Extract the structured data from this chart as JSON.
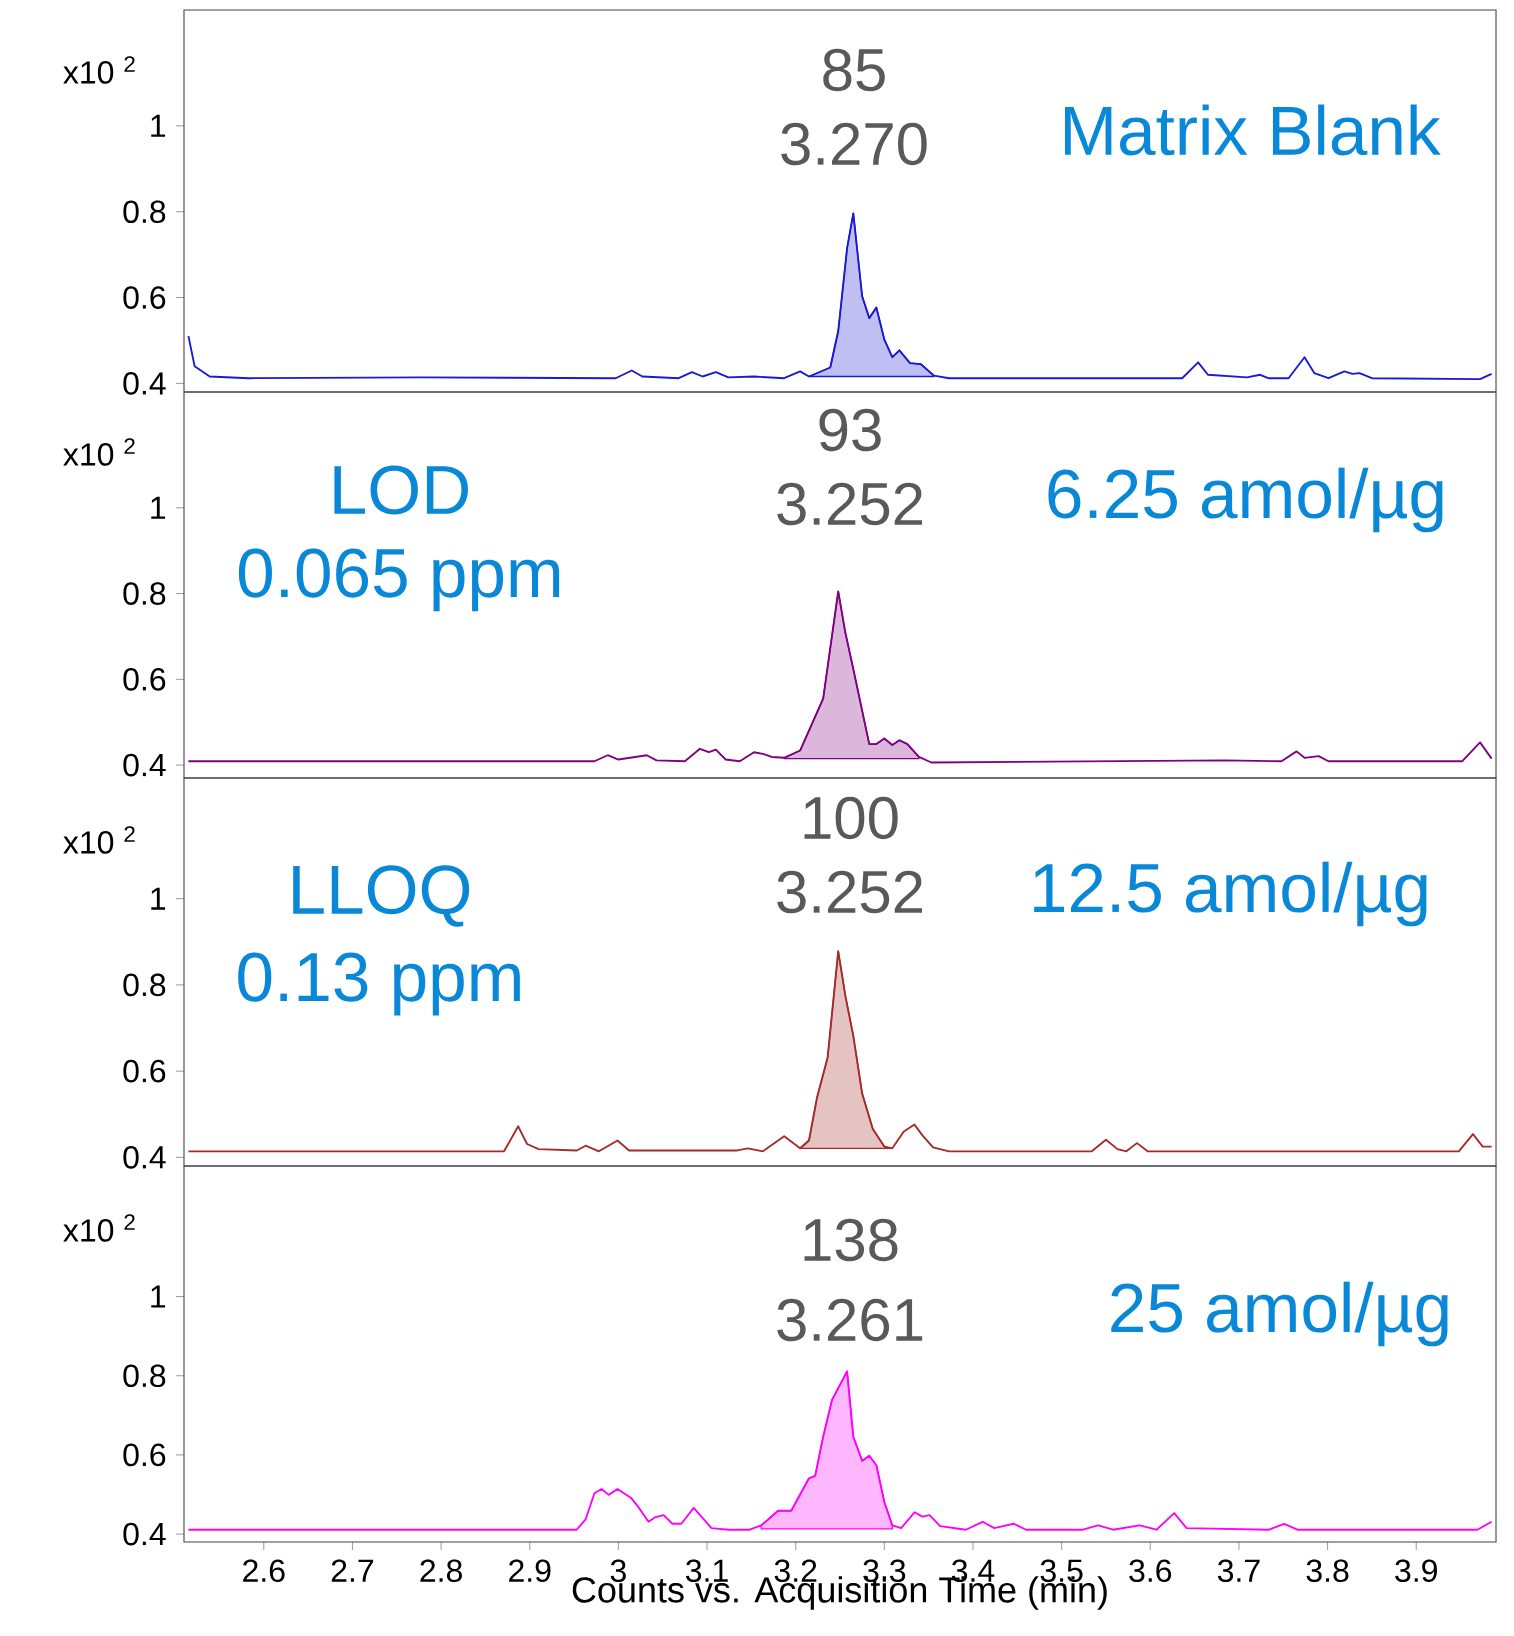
{
  "chart_data": [
    {
      "type": "line",
      "annotations": [
        "x10 $^{2}$",
        "85",
        "3.270",
        "Matrix Blank"
      ],
      "xlim": [
        2.51,
        3.99
      ],
      "ylim": [
        0.38,
        1.27
      ],
      "yticks": [
        0.4,
        0.6,
        0.8,
        1
      ],
      "tick_labels": "y",
      "series": [
        {
          "color": "#1a1ad6",
          "x": [
            2.515,
            2.522,
            2.539,
            2.583,
            2.778,
            2.997,
            3.015,
            3.027,
            3.068,
            3.083,
            3.095,
            3.11,
            3.124,
            3.153,
            3.187,
            3.205,
            3.215,
            3.239,
            3.248,
            3.258,
            3.265,
            3.275,
            3.283,
            3.291,
            3.3,
            3.309,
            3.317,
            3.329,
            3.341,
            3.356,
            3.373,
            3.636,
            3.654,
            3.665,
            3.709,
            3.724,
            3.733,
            3.756,
            3.774,
            3.785,
            3.801,
            3.819,
            3.828,
            3.836,
            3.85,
            3.972,
            3.985
          ],
          "values": [
            0.51,
            0.44,
            0.416,
            0.412,
            0.414,
            0.412,
            0.43,
            0.416,
            0.412,
            0.426,
            0.416,
            0.426,
            0.414,
            0.416,
            0.412,
            0.428,
            0.416,
            0.437,
            0.522,
            0.715,
            0.796,
            0.603,
            0.552,
            0.577,
            0.502,
            0.461,
            0.477,
            0.447,
            0.445,
            0.418,
            0.412,
            0.412,
            0.449,
            0.42,
            0.414,
            0.42,
            0.412,
            0.412,
            0.461,
            0.424,
            0.412,
            0.428,
            0.422,
            0.424,
            0.412,
            0.41,
            0.422
          ],
          "lower": [
            null,
            null,
            null,
            null,
            null,
            null,
            null,
            null,
            null,
            null,
            null,
            null,
            null,
            null,
            null,
            null,
            0.416,
            0.416,
            0.416,
            0.416,
            0.416,
            0.416,
            0.416,
            0.416,
            0.416,
            0.416,
            0.416,
            0.416,
            0.416,
            0.416,
            null,
            null,
            null,
            null,
            null,
            null,
            null,
            null,
            null,
            null,
            null,
            null,
            null,
            null,
            null,
            null,
            null
          ],
          "upper": [
            null,
            null,
            null,
            null,
            null,
            null,
            null,
            null,
            null,
            null,
            null,
            null,
            null,
            null,
            null,
            null,
            0.416,
            0.437,
            0.522,
            0.715,
            0.796,
            0.603,
            0.552,
            0.577,
            0.502,
            0.461,
            0.477,
            0.447,
            0.445,
            0.418,
            null,
            null,
            null,
            null,
            null,
            null,
            null,
            null,
            null,
            null,
            null,
            null,
            null,
            null,
            null,
            null,
            null
          ]
        }
      ]
    },
    {
      "type": "line",
      "annotations": [
        "x10 $^{2}$",
        "93",
        "3.252",
        "6.25 amol/µg",
        "LOD",
        "0.065 ppm"
      ],
      "xlim": [
        2.51,
        3.99
      ],
      "ylim": [
        0.37,
        1.27
      ],
      "yticks": [
        0.4,
        0.6,
        0.8,
        1
      ],
      "tick_labels": "y",
      "series": [
        {
          "color": "#800080",
          "x": [
            2.515,
            2.973,
            2.988,
            3.0,
            3.032,
            3.043,
            3.075,
            3.092,
            3.102,
            3.11,
            3.121,
            3.137,
            3.153,
            3.163,
            3.173,
            3.187,
            3.205,
            3.231,
            3.248,
            3.256,
            3.265,
            3.283,
            3.291,
            3.3,
            3.309,
            3.317,
            3.326,
            3.339,
            3.353,
            3.684,
            3.748,
            3.765,
            3.774,
            3.79,
            3.801,
            3.952,
            3.972,
            3.985
          ],
          "values": [
            0.409,
            0.409,
            0.423,
            0.413,
            0.423,
            0.411,
            0.409,
            0.438,
            0.43,
            0.436,
            0.413,
            0.409,
            0.43,
            0.426,
            0.419,
            0.417,
            0.434,
            0.555,
            0.805,
            0.709,
            0.624,
            0.449,
            0.449,
            0.462,
            0.447,
            0.458,
            0.449,
            0.419,
            0.406,
            0.411,
            0.409,
            0.432,
            0.417,
            0.421,
            0.409,
            0.409,
            0.453,
            0.415
          ],
          "lower": [
            null,
            null,
            null,
            null,
            null,
            null,
            null,
            null,
            null,
            null,
            null,
            null,
            null,
            null,
            null,
            0.415,
            0.415,
            0.415,
            0.415,
            0.415,
            0.415,
            0.415,
            0.415,
            0.415,
            0.415,
            0.415,
            0.415,
            0.415,
            null,
            null,
            null,
            null,
            null,
            null,
            null,
            null,
            null,
            null
          ],
          "upper": [
            null,
            null,
            null,
            null,
            null,
            null,
            null,
            null,
            null,
            null,
            null,
            null,
            null,
            null,
            null,
            0.417,
            0.434,
            0.555,
            0.805,
            0.709,
            0.624,
            0.449,
            0.449,
            0.462,
            0.447,
            0.458,
            0.449,
            0.419,
            null,
            null,
            null,
            null,
            null,
            null,
            null,
            null,
            null,
            null
          ]
        }
      ]
    },
    {
      "type": "line",
      "annotations": [
        "x10 $^{2}$",
        "100",
        "3.252",
        "12.5 amol/µg",
        "LLOQ",
        "0.13 ppm"
      ],
      "xlim": [
        2.51,
        3.99
      ],
      "ylim": [
        0.38,
        1.28
      ],
      "yticks": [
        0.4,
        0.6,
        0.8,
        1
      ],
      "tick_labels": "y",
      "series": [
        {
          "color": "#a52a2a",
          "x": [
            2.515,
            2.871,
            2.887,
            2.897,
            2.91,
            2.953,
            2.963,
            2.978,
            2.999,
            3.012,
            3.134,
            3.146,
            3.163,
            3.187,
            3.205,
            3.215,
            3.224,
            3.236,
            3.248,
            3.256,
            3.265,
            3.275,
            3.287,
            3.3,
            3.309,
            3.322,
            3.334,
            3.343,
            3.355,
            3.373,
            3.534,
            3.55,
            3.563,
            3.573,
            3.585,
            3.597,
            3.948,
            3.964,
            3.975,
            3.985
          ],
          "values": [
            0.414,
            0.414,
            0.472,
            0.431,
            0.419,
            0.416,
            0.427,
            0.414,
            0.439,
            0.416,
            0.416,
            0.421,
            0.414,
            0.449,
            0.421,
            0.439,
            0.538,
            0.631,
            0.878,
            0.775,
            0.682,
            0.548,
            0.466,
            0.425,
            0.421,
            0.46,
            0.476,
            0.451,
            0.423,
            0.414,
            0.414,
            0.441,
            0.419,
            0.414,
            0.433,
            0.414,
            0.414,
            0.454,
            0.425,
            0.425
          ],
          "lower": [
            null,
            null,
            null,
            null,
            null,
            null,
            null,
            null,
            null,
            null,
            null,
            null,
            null,
            null,
            0.421,
            0.421,
            0.421,
            0.421,
            0.421,
            0.421,
            0.421,
            0.421,
            0.421,
            0.421,
            0.421,
            null,
            null,
            null,
            null,
            null,
            null,
            null,
            null,
            null,
            null,
            null,
            null,
            null,
            null,
            null
          ],
          "upper": [
            null,
            null,
            null,
            null,
            null,
            null,
            null,
            null,
            null,
            null,
            null,
            null,
            null,
            null,
            0.421,
            0.439,
            0.538,
            0.631,
            0.878,
            0.775,
            0.682,
            0.548,
            0.466,
            0.425,
            0.421,
            null,
            null,
            null,
            null,
            null,
            null,
            null,
            null,
            null,
            null,
            null,
            null,
            null,
            null,
            null
          ]
        }
      ]
    },
    {
      "type": "line",
      "annotations": [
        "x10 $^{2}$",
        "138",
        "3.261",
        "25 amol/µg"
      ],
      "xlabel": "Counts vs. Acquisition Time (min)",
      "xlim": [
        2.51,
        3.99
      ],
      "xticks": [
        2.6,
        2.7,
        2.8,
        2.9,
        3,
        3.1,
        3.2,
        3.3,
        3.4,
        3.5,
        3.6,
        3.7,
        3.8,
        3.9
      ],
      "ylim": [
        0.38,
        1.33
      ],
      "yticks": [
        0.4,
        0.6,
        0.8,
        1
      ],
      "series": [
        {
          "color": "#ff00ff",
          "x": [
            2.515,
            2.953,
            2.963,
            2.973,
            2.981,
            2.989,
            2.999,
            3.014,
            3.022,
            3.034,
            3.041,
            3.051,
            3.061,
            3.071,
            3.085,
            3.105,
            3.124,
            3.148,
            3.161,
            3.168,
            3.18,
            3.195,
            3.215,
            3.222,
            3.231,
            3.241,
            3.258,
            3.265,
            3.275,
            3.283,
            3.291,
            3.3,
            3.309,
            3.319,
            3.334,
            3.343,
            3.351,
            3.363,
            3.392,
            3.411,
            3.424,
            3.446,
            3.46,
            3.524,
            3.541,
            3.558,
            3.588,
            3.607,
            3.627,
            3.641,
            3.734,
            3.751,
            3.766,
            3.969,
            3.985
          ],
          "values": [
            0.411,
            0.411,
            0.437,
            0.503,
            0.514,
            0.499,
            0.514,
            0.492,
            0.47,
            0.431,
            0.442,
            0.448,
            0.426,
            0.426,
            0.466,
            0.415,
            0.411,
            0.411,
            0.422,
            0.435,
            0.459,
            0.459,
            0.541,
            0.547,
            0.646,
            0.739,
            0.811,
            0.646,
            0.585,
            0.598,
            0.574,
            0.481,
            0.422,
            0.415,
            0.455,
            0.444,
            0.448,
            0.42,
            0.411,
            0.431,
            0.415,
            0.426,
            0.411,
            0.411,
            0.422,
            0.411,
            0.422,
            0.411,
            0.453,
            0.415,
            0.411,
            0.426,
            0.411,
            0.411,
            0.431
          ],
          "lower": [
            null,
            null,
            null,
            null,
            null,
            null,
            null,
            null,
            null,
            null,
            null,
            null,
            null,
            null,
            null,
            null,
            null,
            null,
            0.413,
            0.413,
            0.413,
            0.413,
            0.413,
            0.413,
            0.413,
            0.413,
            0.413,
            0.413,
            0.413,
            0.413,
            0.413,
            0.413,
            0.413,
            null,
            null,
            null,
            null,
            null,
            null,
            null,
            null,
            null,
            null,
            null,
            null,
            null,
            null,
            null,
            null,
            null,
            null,
            null,
            null,
            null,
            null
          ],
          "upper": [
            null,
            null,
            null,
            null,
            null,
            null,
            null,
            null,
            null,
            null,
            null,
            null,
            null,
            null,
            null,
            null,
            null,
            null,
            0.422,
            0.435,
            0.459,
            0.459,
            0.541,
            0.547,
            0.646,
            0.739,
            0.811,
            0.646,
            0.585,
            0.598,
            0.574,
            0.481,
            0.422,
            null,
            null,
            null,
            null,
            null,
            null,
            null,
            null,
            null,
            null,
            null,
            null,
            null,
            null,
            null,
            null,
            null,
            null,
            null,
            null,
            null,
            null
          ]
        }
      ]
    }
  ]
}
